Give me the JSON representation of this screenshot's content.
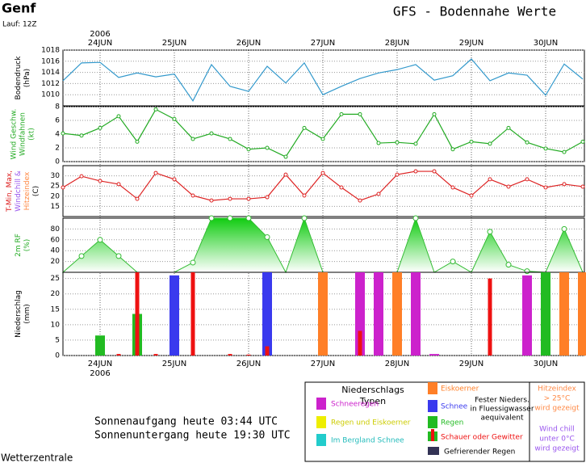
{
  "header": {
    "station": "Genf",
    "run": "Lauf: 12Z",
    "title": "GFS - Bodennahe Werte"
  },
  "chart_data": [
    {
      "type": "line",
      "y_label": [
        "Bodendruck",
        "(hPa)"
      ],
      "color": "#3399cc",
      "year": "2006",
      "categories": [
        null,
        null,
        "24JUN",
        null,
        null,
        null,
        "25JUN",
        null,
        null,
        null,
        "26JUN",
        null,
        null,
        null,
        "27JUN",
        null,
        null,
        null,
        "28JUN",
        null,
        null,
        null,
        "29JUN",
        null,
        null,
        null,
        "30JUN",
        null,
        null
      ],
      "values": [
        1012.5,
        1015.7,
        1015.8,
        1013.1,
        1013.9,
        1013.2,
        1013.7,
        1008.9,
        1015.4,
        1011.5,
        1010.6,
        1015.1,
        1012.1,
        1015.7,
        1010.0,
        1011.5,
        1012.9,
        1013.9,
        1014.5,
        1015.4,
        1012.6,
        1013.4,
        1016.4,
        1012.5,
        1013.9,
        1013.5,
        1009.9,
        1015.5,
        1012.8
      ],
      "ylim": [
        1008,
        1018
      ],
      "yticks": [
        1010,
        1012,
        1014,
        1016,
        1018
      ]
    },
    {
      "type": "line",
      "y_label": [
        "Wind Geschw.",
        "Windfahnen",
        "(kt)"
      ],
      "color": "#22aa22",
      "markers": true,
      "values": [
        4.1,
        3.8,
        4.9,
        6.6,
        2.9,
        7.6,
        6.2,
        3.3,
        4.1,
        3.3,
        1.8,
        2.0,
        0.7,
        4.9,
        3.3,
        6.9,
        6.9,
        2.7,
        2.8,
        2.6,
        6.9,
        1.8,
        2.9,
        2.6,
        4.9,
        2.8,
        1.9,
        1.4,
        2.9
      ],
      "ylim": [
        0,
        8
      ],
      "yticks": [
        0,
        2,
        4,
        6,
        8
      ]
    },
    {
      "type": "line",
      "y_label": [
        "T-Min, Max,",
        "Windchill &",
        "Hitzeindex",
        "(C)"
      ],
      "color": "#dd2222",
      "markers": true,
      "values": [
        24.3,
        29.8,
        27.5,
        25.9,
        18.7,
        31.4,
        28.3,
        20.3,
        17.9,
        18.7,
        18.7,
        19.5,
        30.6,
        20.3,
        31.4,
        24.3,
        17.9,
        21.1,
        30.6,
        32.2,
        32.2,
        24.3,
        20.3,
        28.3,
        24.7,
        28.3,
        24.3,
        25.9,
        24.7
      ],
      "ylim": [
        10,
        35
      ],
      "yticks": [
        15,
        20,
        25,
        30
      ]
    },
    {
      "type": "area",
      "y_label": [
        "2m RF",
        "(%)"
      ],
      "color": "#33bb33",
      "values": [
        0,
        30,
        60,
        30,
        0,
        0,
        0,
        18,
        100,
        100,
        100,
        65,
        0,
        100,
        0,
        0,
        0,
        0,
        0,
        100,
        0,
        20,
        0,
        75,
        14,
        2,
        0,
        80,
        0
      ],
      "ylim": [
        0,
        100
      ],
      "yticks": [
        20,
        40,
        60,
        80
      ]
    },
    {
      "type": "bar",
      "y_label": [
        "Niederschlag",
        "(mm)"
      ],
      "year": "2006",
      "categories": [
        null,
        null,
        "24JUN",
        null,
        null,
        null,
        "25JUN",
        null,
        null,
        null,
        "26JUN",
        null,
        null,
        null,
        "27JUN",
        null,
        null,
        null,
        "28JUN",
        null,
        null,
        null,
        "29JUN",
        null,
        null,
        null,
        "30JUN",
        null,
        null
      ],
      "series": [
        {
          "values": [
            null,
            null,
            6.5,
            null,
            13.5,
            null,
            26,
            null,
            null,
            null,
            null,
            27,
            null,
            null,
            27,
            null,
            27,
            27,
            27,
            27,
            0.5,
            null,
            null,
            null,
            null,
            26,
            27,
            27,
            27
          ],
          "colors": [
            null,
            null,
            "#22bb22",
            null,
            "#22bb22",
            null,
            "#3a3aee",
            null,
            null,
            null,
            null,
            "#3a3aee",
            null,
            null,
            "#ff7f27",
            null,
            "#cc22cc",
            "#cc22cc",
            "#ff7f27",
            "#cc22cc",
            "#cc22cc",
            null,
            null,
            null,
            null,
            "#cc22cc",
            "#22bb22",
            "#ff7f27",
            "#ff7f27"
          ]
        },
        {
          "color": "#ee1111",
          "values": [
            null,
            null,
            null,
            0.5,
            27,
            0.5,
            null,
            27,
            null,
            0.5,
            0.3,
            3,
            null,
            null,
            null,
            null,
            8,
            null,
            null,
            null,
            null,
            null,
            null,
            25,
            null,
            null,
            null,
            null,
            null
          ]
        }
      ],
      "ylim": [
        0,
        27
      ],
      "yticks": [
        0,
        5,
        10,
        15,
        20,
        25
      ]
    }
  ],
  "sun": [
    "Sonnenaufgang heute 03:44 UTC",
    "Sonnenuntergang heute 19:30 UTC"
  ],
  "legend": {
    "title": [
      "Niederschlags",
      "Typen"
    ],
    "schneeregen": "Schneeregen",
    "regen_eis": "Regen und Eiskoerner",
    "bergland": "Im Bergland Schnee",
    "eiskoerner": "Eiskoerner",
    "schnee": "Schnee",
    "regen": "Regen",
    "schauer": "Schauer oder Gewitter",
    "fester": [
      "Fester Nieders.",
      "in Fluessigwasser",
      "aequivalent"
    ],
    "gefrierend": "Gefrierender Regen",
    "hitze": [
      "Hitzeindex",
      "> 25°C",
      "wird gezeigt"
    ],
    "chill": [
      "Wind chill",
      "unter 0°C",
      "wird gezeigt"
    ]
  },
  "footer": "Wetterzentrale"
}
